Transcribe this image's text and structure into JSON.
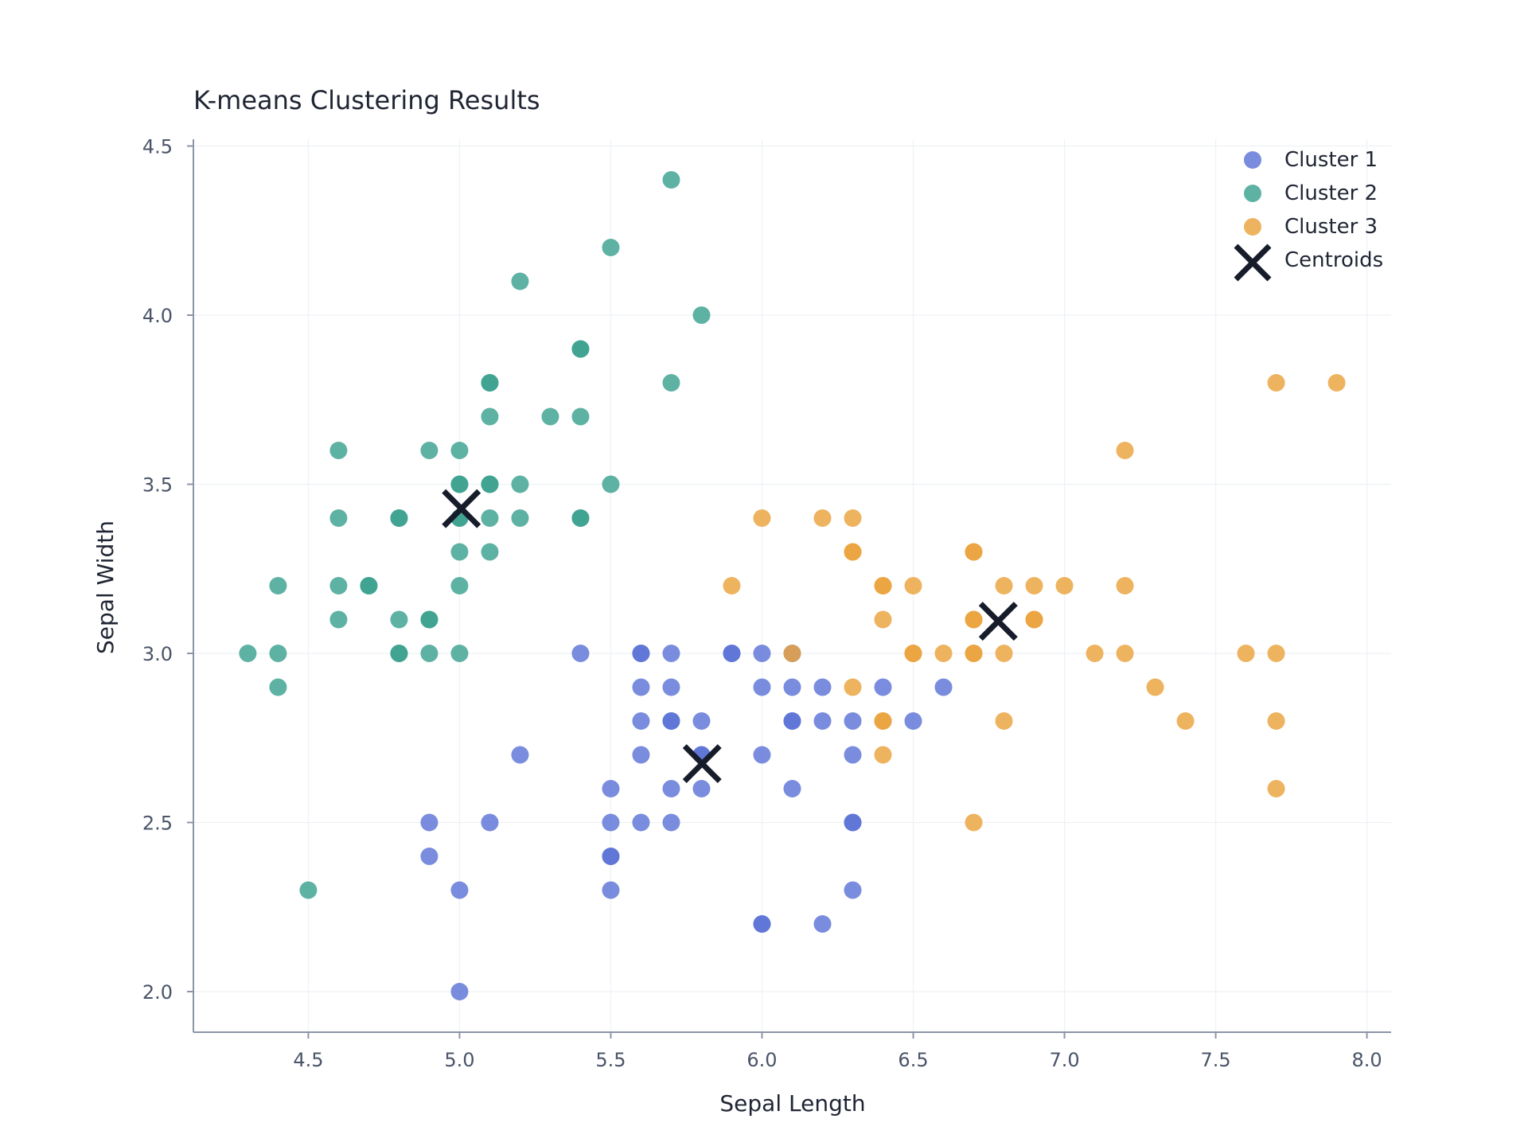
{
  "chart_data": {
    "type": "scatter",
    "title": "K-means Clustering Results",
    "xlabel": "Sepal Length",
    "ylabel": "Sepal Width",
    "xlim": [
      4.12,
      8.08
    ],
    "ylim": [
      1.88,
      4.52
    ],
    "xticks": [
      4.5,
      5.0,
      5.5,
      6.0,
      6.5,
      7.0,
      7.5,
      8.0
    ],
    "xtick_labels": [
      "4.5",
      "5.0",
      "5.5",
      "6.0",
      "6.5",
      "7.0",
      "7.5",
      "8.0"
    ],
    "yticks": [
      2.0,
      2.5,
      3.0,
      3.5,
      4.0,
      4.5
    ],
    "ytick_labels": [
      "2.0",
      "2.5",
      "3.0",
      "3.5",
      "4.0",
      "4.5"
    ],
    "grid": true,
    "legend_position": "top-right",
    "series": [
      {
        "name": "Cluster 1",
        "color": "#5b73d6",
        "points": [
          [
            4.9,
            2.5
          ],
          [
            4.9,
            2.4
          ],
          [
            5.0,
            2.3
          ],
          [
            5.0,
            2.0
          ],
          [
            5.1,
            2.5
          ],
          [
            5.2,
            2.7
          ],
          [
            5.4,
            3.0
          ],
          [
            5.5,
            2.6
          ],
          [
            5.5,
            2.5
          ],
          [
            5.5,
            2.4
          ],
          [
            5.5,
            2.4
          ],
          [
            5.5,
            2.3
          ],
          [
            5.6,
            3.0
          ],
          [
            5.6,
            3.0
          ],
          [
            5.6,
            2.9
          ],
          [
            5.6,
            2.8
          ],
          [
            5.6,
            2.7
          ],
          [
            5.6,
            2.5
          ],
          [
            5.7,
            3.0
          ],
          [
            5.7,
            2.9
          ],
          [
            5.7,
            2.8
          ],
          [
            5.7,
            2.8
          ],
          [
            5.7,
            2.6
          ],
          [
            5.7,
            2.5
          ],
          [
            5.8,
            2.8
          ],
          [
            5.8,
            2.7
          ],
          [
            5.8,
            2.7
          ],
          [
            5.8,
            2.6
          ],
          [
            5.9,
            3.0
          ],
          [
            5.9,
            3.0
          ],
          [
            6.0,
            3.0
          ],
          [
            6.0,
            2.9
          ],
          [
            6.0,
            2.7
          ],
          [
            6.0,
            2.2
          ],
          [
            6.0,
            2.2
          ],
          [
            6.1,
            2.9
          ],
          [
            6.1,
            2.8
          ],
          [
            6.1,
            2.8
          ],
          [
            6.1,
            2.6
          ],
          [
            6.1,
            3.0
          ],
          [
            6.2,
            2.9
          ],
          [
            6.2,
            2.8
          ],
          [
            6.2,
            2.2
          ],
          [
            6.3,
            2.8
          ],
          [
            6.3,
            2.7
          ],
          [
            6.3,
            2.5
          ],
          [
            6.3,
            2.5
          ],
          [
            6.3,
            2.3
          ],
          [
            6.4,
            2.9
          ],
          [
            6.5,
            2.8
          ],
          [
            6.6,
            2.9
          ]
        ]
      },
      {
        "name": "Cluster 2",
        "color": "#3aa18f",
        "points": [
          [
            4.3,
            3.0
          ],
          [
            4.4,
            3.2
          ],
          [
            4.4,
            3.0
          ],
          [
            4.4,
            2.9
          ],
          [
            4.5,
            2.3
          ],
          [
            4.6,
            3.6
          ],
          [
            4.6,
            3.4
          ],
          [
            4.6,
            3.2
          ],
          [
            4.6,
            3.1
          ],
          [
            4.7,
            3.2
          ],
          [
            4.7,
            3.2
          ],
          [
            4.8,
            3.4
          ],
          [
            4.8,
            3.4
          ],
          [
            4.8,
            3.1
          ],
          [
            4.8,
            3.0
          ],
          [
            4.8,
            3.0
          ],
          [
            4.9,
            3.6
          ],
          [
            4.9,
            3.1
          ],
          [
            4.9,
            3.1
          ],
          [
            4.9,
            3.0
          ],
          [
            5.0,
            3.6
          ],
          [
            5.0,
            3.5
          ],
          [
            5.0,
            3.5
          ],
          [
            5.0,
            3.4
          ],
          [
            5.0,
            3.4
          ],
          [
            5.0,
            3.3
          ],
          [
            5.0,
            3.2
          ],
          [
            5.0,
            3.0
          ],
          [
            5.1,
            3.8
          ],
          [
            5.1,
            3.8
          ],
          [
            5.1,
            3.7
          ],
          [
            5.1,
            3.5
          ],
          [
            5.1,
            3.5
          ],
          [
            5.1,
            3.4
          ],
          [
            5.1,
            3.3
          ],
          [
            5.2,
            4.1
          ],
          [
            5.2,
            3.5
          ],
          [
            5.2,
            3.4
          ],
          [
            5.3,
            3.7
          ],
          [
            5.4,
            3.9
          ],
          [
            5.4,
            3.9
          ],
          [
            5.4,
            3.7
          ],
          [
            5.4,
            3.4
          ],
          [
            5.4,
            3.4
          ],
          [
            5.5,
            4.2
          ],
          [
            5.5,
            3.5
          ],
          [
            5.7,
            4.4
          ],
          [
            5.7,
            3.8
          ],
          [
            5.8,
            4.0
          ]
        ]
      },
      {
        "name": "Cluster 3",
        "color": "#eaa23c",
        "points": [
          [
            5.9,
            3.2
          ],
          [
            6.0,
            3.4
          ],
          [
            6.1,
            3.0
          ],
          [
            6.2,
            3.4
          ],
          [
            6.3,
            3.4
          ],
          [
            6.3,
            3.3
          ],
          [
            6.3,
            3.3
          ],
          [
            6.3,
            2.9
          ],
          [
            6.4,
            3.2
          ],
          [
            6.4,
            3.2
          ],
          [
            6.4,
            3.1
          ],
          [
            6.4,
            2.8
          ],
          [
            6.4,
            2.8
          ],
          [
            6.4,
            2.7
          ],
          [
            6.5,
            3.2
          ],
          [
            6.5,
            3.0
          ],
          [
            6.5,
            3.0
          ],
          [
            6.6,
            3.0
          ],
          [
            6.7,
            3.3
          ],
          [
            6.7,
            3.3
          ],
          [
            6.7,
            3.1
          ],
          [
            6.7,
            3.1
          ],
          [
            6.7,
            3.0
          ],
          [
            6.7,
            3.0
          ],
          [
            6.7,
            2.5
          ],
          [
            6.8,
            3.2
          ],
          [
            6.8,
            3.0
          ],
          [
            6.8,
            2.8
          ],
          [
            6.9,
            3.2
          ],
          [
            6.9,
            3.1
          ],
          [
            6.9,
            3.1
          ],
          [
            7.0,
            3.2
          ],
          [
            7.1,
            3.0
          ],
          [
            7.2,
            3.6
          ],
          [
            7.2,
            3.2
          ],
          [
            7.2,
            3.0
          ],
          [
            7.3,
            2.9
          ],
          [
            7.4,
            2.8
          ],
          [
            7.6,
            3.0
          ],
          [
            7.7,
            3.8
          ],
          [
            7.7,
            3.0
          ],
          [
            7.7,
            2.8
          ],
          [
            7.7,
            2.6
          ],
          [
            7.9,
            3.8
          ]
        ]
      },
      {
        "name": "Centroids",
        "color": "#171c2b",
        "marker": "x",
        "points": [
          [
            5.006,
            3.428
          ],
          [
            5.802,
            2.674
          ],
          [
            6.781,
            3.095
          ]
        ]
      }
    ]
  }
}
